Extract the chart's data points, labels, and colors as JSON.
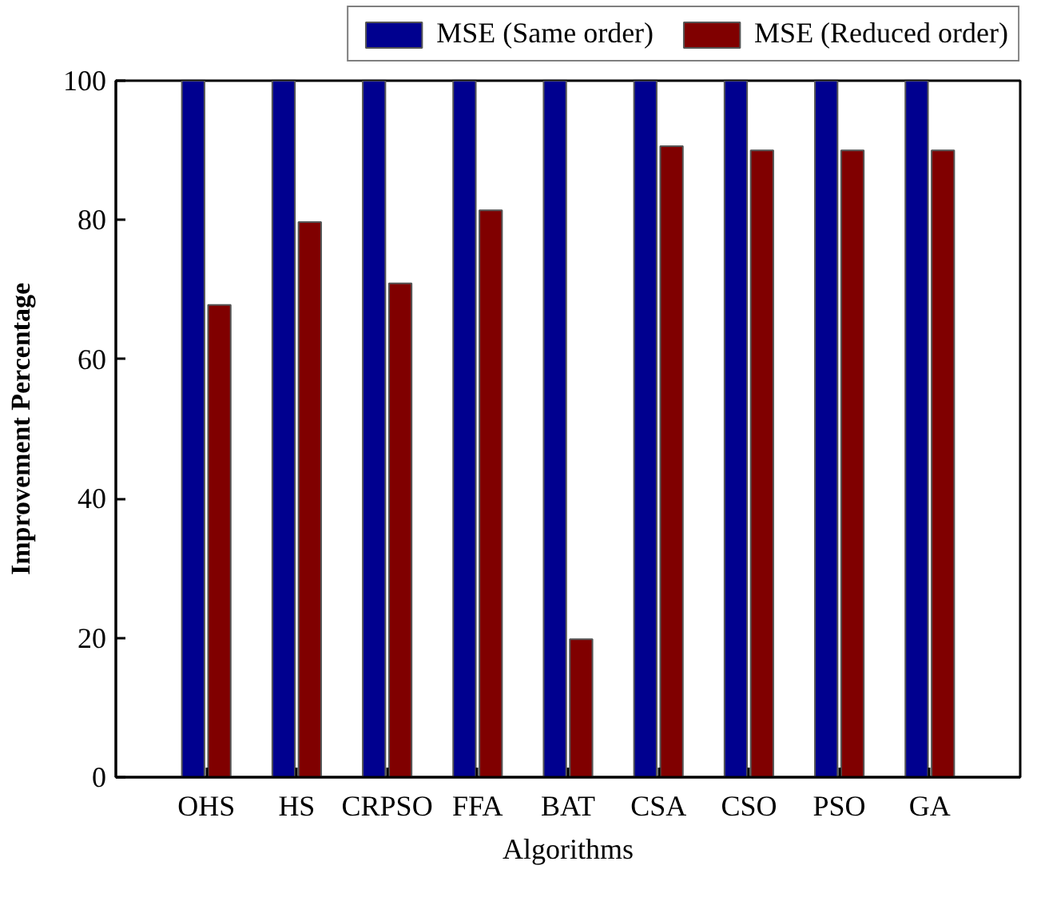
{
  "chart_data": {
    "type": "bar",
    "xlabel": "Algorithms",
    "ylabel": "Improvement Percentage",
    "categories": [
      "OHS",
      "HS",
      "CRPSO",
      "FFA",
      "BAT",
      "CSA",
      "CSO",
      "PSO",
      "GA"
    ],
    "series": [
      {
        "name": "MSE (Same order)",
        "color": "#00008f",
        "values": [
          100,
          100,
          100,
          100,
          100,
          100,
          100,
          100,
          100
        ]
      },
      {
        "name": "MSE (Reduced order)",
        "color": "#800000",
        "values": [
          67.8,
          79.7,
          70.9,
          81.4,
          19.8,
          90.6,
          90,
          90,
          90
        ]
      }
    ],
    "ylim": [
      0,
      100
    ],
    "yticks": [
      0,
      20,
      40,
      60,
      80,
      100
    ],
    "grid": false,
    "legend": "top right"
  }
}
